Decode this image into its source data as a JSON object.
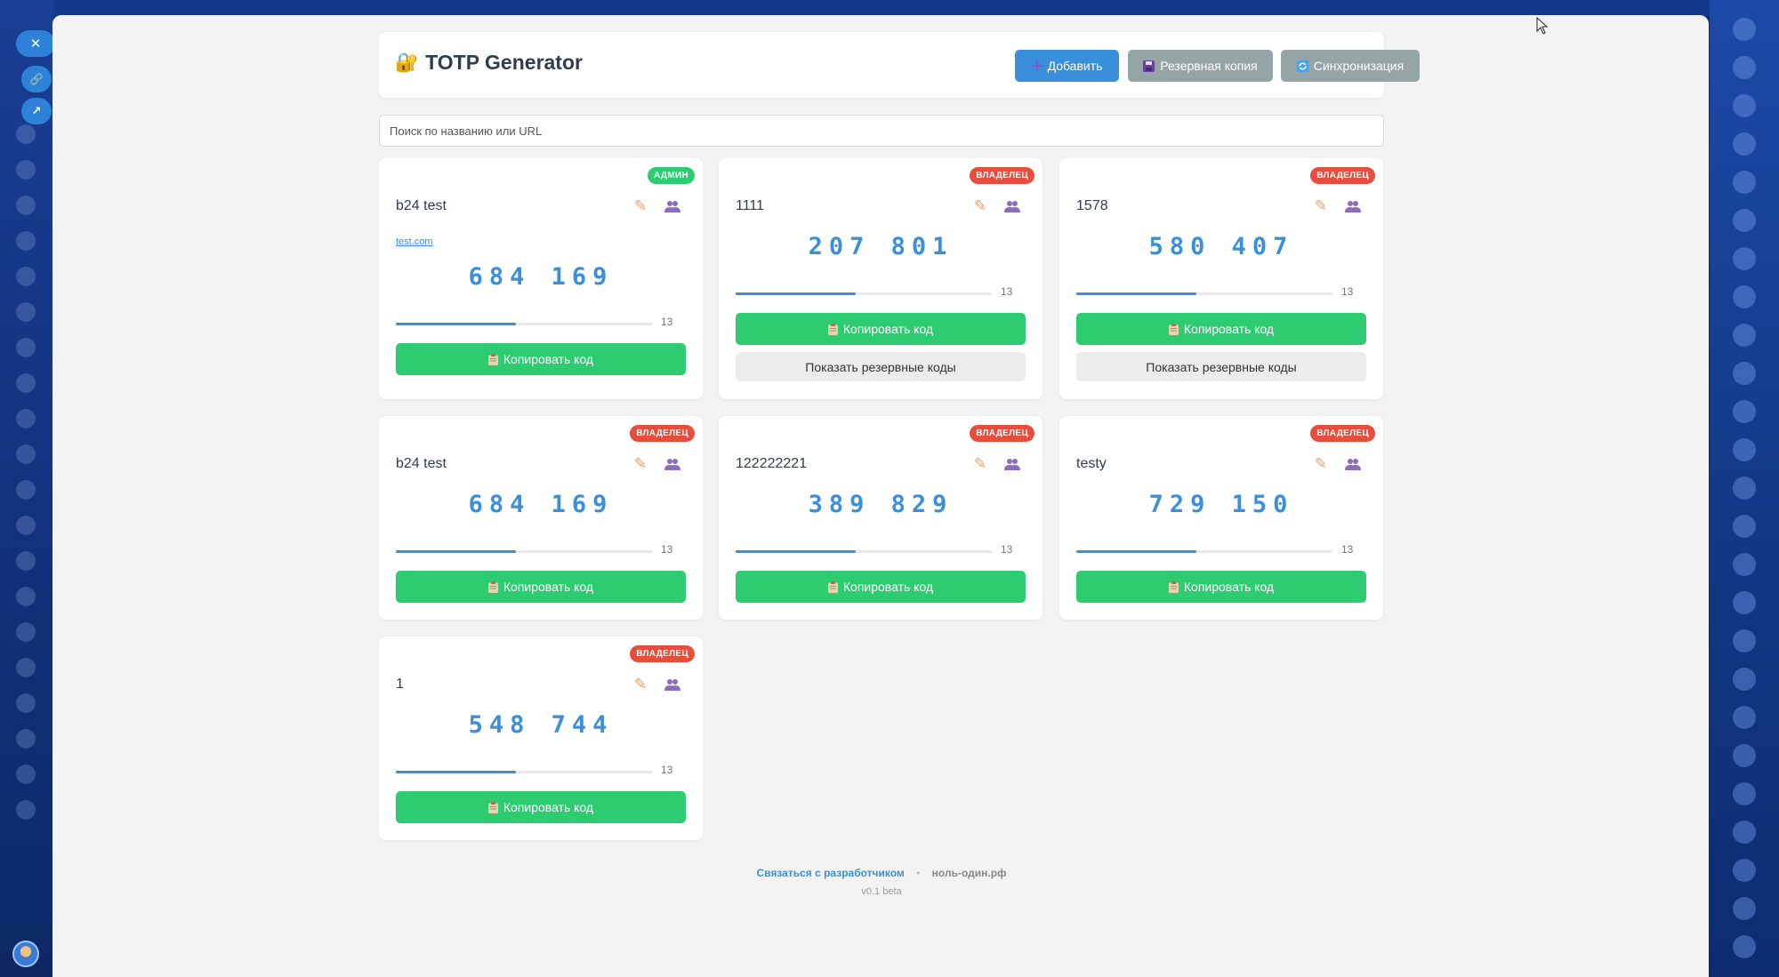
{
  "app": {
    "title": "TOTP Generator",
    "lock_icon": "🔐"
  },
  "header": {
    "add_label": "Добавить",
    "add_icon": "plus-icon",
    "backup_label": "Резервная копия",
    "backup_icon": "floppy-icon",
    "sync_label": "Синхронизация",
    "sync_icon": "sync-icon"
  },
  "search": {
    "placeholder": "Поиск по названию или URL",
    "value": ""
  },
  "side": {
    "close_glyph": "✕",
    "link_glyph": "🔗",
    "external_glyph": "↗"
  },
  "cards": [
    {
      "name": "b24 test",
      "role": "АДМИН",
      "role_type": "admin",
      "url": "test.com",
      "code": "684 169",
      "timer": "13",
      "progress": 0.47,
      "copy_label": "Копировать код",
      "show_backup": false
    },
    {
      "name": "1111",
      "role": "ВЛАДЕЛЕЦ",
      "role_type": "owner",
      "url": "",
      "code": "207 801",
      "timer": "13",
      "progress": 0.47,
      "copy_label": "Копировать код",
      "show_backup": true,
      "backup_label": "Показать резервные коды"
    },
    {
      "name": "1578",
      "role": "ВЛАДЕЛЕЦ",
      "role_type": "owner",
      "url": "",
      "code": "580 407",
      "timer": "13",
      "progress": 0.47,
      "copy_label": "Копировать код",
      "show_backup": true,
      "backup_label": "Показать резервные коды"
    },
    {
      "name": "b24 test",
      "role": "ВЛАДЕЛЕЦ",
      "role_type": "owner",
      "url": "",
      "code": "684 169",
      "timer": "13",
      "progress": 0.47,
      "copy_label": "Копировать код",
      "show_backup": false
    },
    {
      "name": "122222221",
      "role": "ВЛАДЕЛЕЦ",
      "role_type": "owner",
      "url": "",
      "code": "389 829",
      "timer": "13",
      "progress": 0.47,
      "copy_label": "Копировать код",
      "show_backup": false
    },
    {
      "name": "testy",
      "role": "ВЛАДЕЛЕЦ",
      "role_type": "owner",
      "url": "",
      "code": "729 150",
      "timer": "13",
      "progress": 0.47,
      "copy_label": "Копировать код",
      "show_backup": false
    },
    {
      "name": "1",
      "role": "ВЛАДЕЛЕЦ",
      "role_type": "owner",
      "url": "",
      "code": "548 744",
      "timer": "13",
      "progress": 0.47,
      "copy_label": "Копировать код",
      "show_backup": false
    }
  ],
  "footer": {
    "contact": "Связаться с разработчиком",
    "separator": "•",
    "site": "ноль-один.рф",
    "version": "v0.1 beta"
  },
  "colors": {
    "primary": "#3a8fdb",
    "success": "#2ecc71",
    "danger": "#e74c3c",
    "muted": "#95a5a6"
  }
}
